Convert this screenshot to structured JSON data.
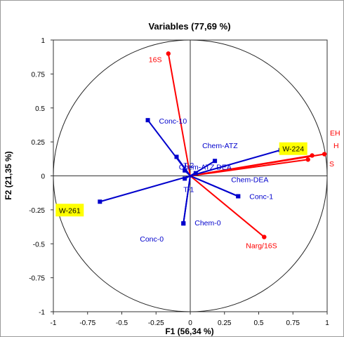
{
  "chart_data": {
    "type": "scatter",
    "title": "Variables (77,69 %)",
    "xlabel": "F1 (56,34 %)",
    "ylabel": "F2 (21,35 %)",
    "xlim": [
      -1,
      1
    ],
    "ylim": [
      -1,
      1
    ],
    "xticks": [
      "-1",
      "-0.75",
      "-0.5",
      "-0.25",
      "0",
      "0.25",
      "0.5",
      "0.75",
      "1"
    ],
    "yticks": [
      "1",
      "0.75",
      "0.5",
      "0.25",
      "0",
      "-0.25",
      "-0.5",
      "-0.75",
      "-1"
    ],
    "x_tick_values": [
      -1,
      -0.75,
      -0.5,
      -0.25,
      0,
      0.25,
      0.5,
      0.75,
      1
    ],
    "y_tick_values": [
      1,
      0.75,
      0.5,
      0.25,
      0,
      -0.25,
      -0.5,
      -0.75,
      -1
    ],
    "unit_circle": true,
    "series": [
      {
        "color": "#ff0000",
        "points": [
          {
            "label": "16S",
            "x": -0.16,
            "y": 0.9
          },
          {
            "label": "Narg/16S",
            "x": 0.54,
            "y": -0.45
          },
          {
            "label": "",
            "x": 0.86,
            "y": 0.12
          },
          {
            "label": "",
            "x": 0.89,
            "y": 0.15
          },
          {
            "label": "",
            "x": 0.98,
            "y": 0.16
          }
        ]
      },
      {
        "color": "#0000cc",
        "points": [
          {
            "label": "Conc-10",
            "x": -0.31,
            "y": 0.41
          },
          {
            "label": "",
            "x": -0.1,
            "y": 0.14
          },
          {
            "label": "Chem-ATZ",
            "x": 0.18,
            "y": 0.11
          },
          {
            "label": "Chem-ATZ DEA",
            "x": 0.04,
            "y": 0.02
          },
          {
            "label": "T-2",
            "x": -0.04,
            "y": 0.04
          },
          {
            "label": "T-1",
            "x": -0.04,
            "y": -0.02
          },
          {
            "label": "Chem-DEA",
            "x": 0.35,
            "y": -0.15
          },
          {
            "label": "Conc-1",
            "x": 0.35,
            "y": -0.15
          },
          {
            "label": "Chem-0",
            "x": -0.05,
            "y": -0.35
          },
          {
            "label": "Conc-0",
            "x": -0.05,
            "y": -0.35
          },
          {
            "label": "W-224",
            "x": 0.66,
            "y": 0.19
          },
          {
            "label": "W-261",
            "x": -0.66,
            "y": -0.19
          }
        ]
      }
    ],
    "annotations": [
      "W-224",
      "W-261"
    ],
    "partial_labels": [
      "EH",
      "H",
      "S"
    ],
    "highlight_color": "#ffff00"
  }
}
